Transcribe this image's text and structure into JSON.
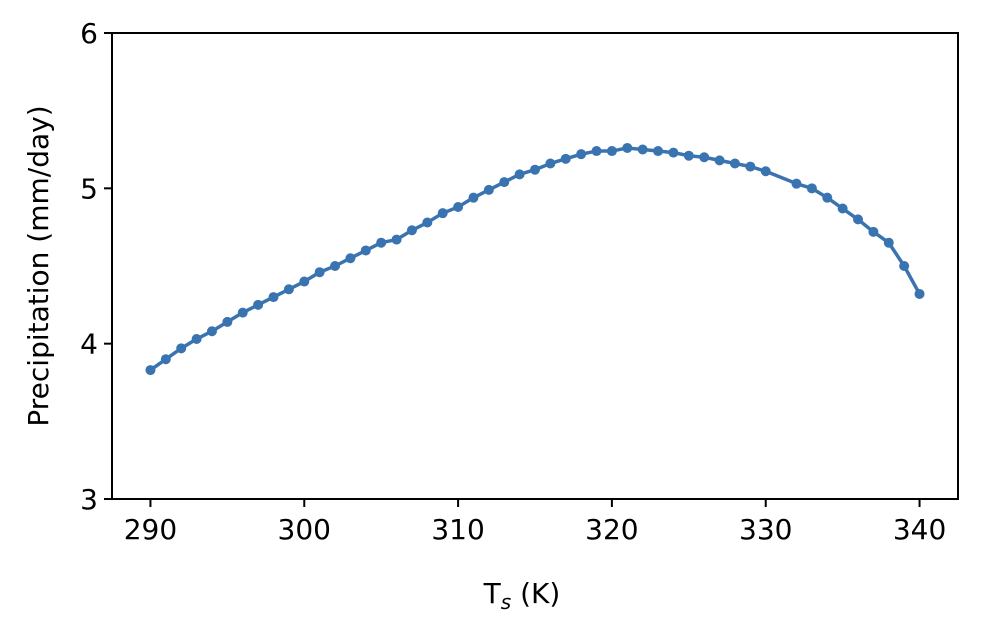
{
  "chart_data": {
    "type": "line",
    "title": "",
    "xlabel_main": "T",
    "xlabel_sub": "s",
    "xlabel_unit": " (K)",
    "ylabel": "Precipitation (mm/day)",
    "xlim": [
      287.5,
      342.5
    ],
    "ylim": [
      3,
      6
    ],
    "xticks": [
      290,
      300,
      310,
      320,
      330,
      340
    ],
    "yticks": [
      3,
      4,
      5,
      6
    ],
    "grid": false,
    "color": "#3a74b0",
    "series": [
      {
        "x": [
          290,
          291,
          292,
          293,
          294,
          295,
          296,
          297,
          298,
          299,
          300,
          301,
          302,
          303,
          304,
          305,
          306,
          307,
          308,
          309,
          310,
          311,
          312,
          313,
          314,
          315,
          316,
          317,
          318,
          319,
          320,
          321,
          322,
          323,
          324,
          325,
          326,
          327,
          328,
          329,
          330,
          332,
          333,
          334,
          335,
          336,
          337,
          338,
          339,
          340
        ],
        "y": [
          3.83,
          3.9,
          3.97,
          4.03,
          4.08,
          4.14,
          4.2,
          4.25,
          4.3,
          4.35,
          4.4,
          4.46,
          4.5,
          4.55,
          4.6,
          4.65,
          4.67,
          4.73,
          4.78,
          4.84,
          4.88,
          4.94,
          4.99,
          5.04,
          5.09,
          5.12,
          5.16,
          5.19,
          5.22,
          5.24,
          5.24,
          5.26,
          5.25,
          5.24,
          5.23,
          5.21,
          5.2,
          5.18,
          5.16,
          5.14,
          5.11,
          5.03,
          5.0,
          4.94,
          4.87,
          4.8,
          4.72,
          4.65,
          4.5,
          4.32
        ]
      }
    ]
  }
}
